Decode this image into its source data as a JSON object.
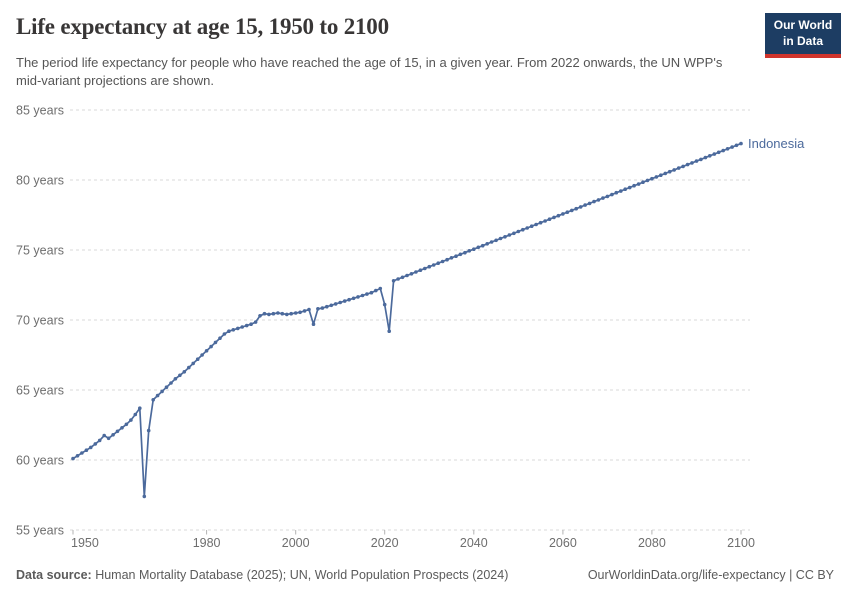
{
  "header": {
    "title": "Life expectancy at age 15, 1950 to 2100",
    "subtitle": "The period life expectancy for people who have reached the age of 15, in a given year. From 2022 onwards, the UN WPP's mid-variant projections are shown."
  },
  "logo": {
    "line1": "Our World",
    "line2": "in Data",
    "bg_color": "#1d3d63",
    "stripe_color": "#d0342c"
  },
  "footer": {
    "source_label": "Data source:",
    "source_text": " Human Mortality Database (2025); UN, World Population Prospects (2024)",
    "link": "OurWorldinData.org/life-expectancy | CC BY"
  },
  "chart_data": {
    "type": "line",
    "title": "Life expectancy at age 15, 1950 to 2100",
    "xlabel": "",
    "ylabel": "",
    "xlim": [
      1950,
      2100
    ],
    "ylim": [
      55,
      85
    ],
    "grid": "dashed-horizontal",
    "grid_color": "#dadada",
    "tick_color": "#b3b3b3",
    "line_color": "#4c6a9c",
    "legend_position": "end-of-line-label",
    "x_ticks": [
      {
        "value": 1950,
        "label": "1950"
      },
      {
        "value": 1980,
        "label": "1980"
      },
      {
        "value": 2000,
        "label": "2000"
      },
      {
        "value": 2020,
        "label": "2020"
      },
      {
        "value": 2040,
        "label": "2040"
      },
      {
        "value": 2060,
        "label": "2060"
      },
      {
        "value": 2080,
        "label": "2080"
      },
      {
        "value": 2100,
        "label": "2100"
      }
    ],
    "y_ticks": [
      {
        "value": 55,
        "label": "55 years"
      },
      {
        "value": 60,
        "label": "60 years"
      },
      {
        "value": 65,
        "label": "65 years"
      },
      {
        "value": 70,
        "label": "70 years"
      },
      {
        "value": 75,
        "label": "75 years"
      },
      {
        "value": 80,
        "label": "80 years"
      },
      {
        "value": 85,
        "label": "85 years"
      }
    ],
    "series": [
      {
        "name": "Indonesia",
        "points": [
          [
            1950,
            60.1
          ],
          [
            1951,
            60.3
          ],
          [
            1952,
            60.5
          ],
          [
            1953,
            60.7
          ],
          [
            1954,
            60.9
          ],
          [
            1955,
            61.15
          ],
          [
            1956,
            61.4
          ],
          [
            1957,
            61.75
          ],
          [
            1958,
            61.55
          ],
          [
            1959,
            61.8
          ],
          [
            1960,
            62.05
          ],
          [
            1961,
            62.3
          ],
          [
            1962,
            62.55
          ],
          [
            1963,
            62.85
          ],
          [
            1964,
            63.25
          ],
          [
            1965,
            63.7
          ],
          [
            1966,
            57.4
          ],
          [
            1967,
            62.1
          ],
          [
            1968,
            64.3
          ],
          [
            1969,
            64.6
          ],
          [
            1970,
            64.9
          ],
          [
            1971,
            65.2
          ],
          [
            1972,
            65.5
          ],
          [
            1973,
            65.8
          ],
          [
            1974,
            66.05
          ],
          [
            1975,
            66.3
          ],
          [
            1976,
            66.6
          ],
          [
            1977,
            66.9
          ],
          [
            1978,
            67.2
          ],
          [
            1979,
            67.5
          ],
          [
            1980,
            67.8
          ],
          [
            1981,
            68.1
          ],
          [
            1982,
            68.4
          ],
          [
            1983,
            68.7
          ],
          [
            1984,
            69.0
          ],
          [
            1985,
            69.2
          ],
          [
            1986,
            69.3
          ],
          [
            1987,
            69.4
          ],
          [
            1988,
            69.5
          ],
          [
            1989,
            69.6
          ],
          [
            1990,
            69.7
          ],
          [
            1991,
            69.85
          ],
          [
            1992,
            70.3
          ],
          [
            1993,
            70.45
          ],
          [
            1994,
            70.4
          ],
          [
            1995,
            70.45
          ],
          [
            1996,
            70.5
          ],
          [
            1997,
            70.45
          ],
          [
            1998,
            70.4
          ],
          [
            1999,
            70.45
          ],
          [
            2000,
            70.5
          ],
          [
            2001,
            70.55
          ],
          [
            2002,
            70.65
          ],
          [
            2003,
            70.75
          ],
          [
            2004,
            69.7
          ],
          [
            2005,
            70.8
          ],
          [
            2006,
            70.85
          ],
          [
            2007,
            70.95
          ],
          [
            2008,
            71.05
          ],
          [
            2009,
            71.15
          ],
          [
            2010,
            71.25
          ],
          [
            2011,
            71.35
          ],
          [
            2012,
            71.45
          ],
          [
            2013,
            71.55
          ],
          [
            2014,
            71.65
          ],
          [
            2015,
            71.75
          ],
          [
            2016,
            71.85
          ],
          [
            2017,
            71.95
          ],
          [
            2018,
            72.1
          ],
          [
            2019,
            72.25
          ],
          [
            2020,
            71.1
          ],
          [
            2021,
            69.2
          ],
          [
            2022,
            72.8
          ],
          [
            2023,
            72.93
          ],
          [
            2024,
            73.05
          ],
          [
            2025,
            73.18
          ],
          [
            2026,
            73.3
          ],
          [
            2027,
            73.43
          ],
          [
            2028,
            73.56
          ],
          [
            2029,
            73.68
          ],
          [
            2030,
            73.81
          ],
          [
            2031,
            73.93
          ],
          [
            2032,
            74.06
          ],
          [
            2033,
            74.18
          ],
          [
            2034,
            74.31
          ],
          [
            2035,
            74.44
          ],
          [
            2036,
            74.56
          ],
          [
            2037,
            74.69
          ],
          [
            2038,
            74.81
          ],
          [
            2039,
            74.94
          ],
          [
            2040,
            75.06
          ],
          [
            2041,
            75.19
          ],
          [
            2042,
            75.31
          ],
          [
            2043,
            75.44
          ],
          [
            2044,
            75.57
          ],
          [
            2045,
            75.69
          ],
          [
            2046,
            75.82
          ],
          [
            2047,
            75.94
          ],
          [
            2048,
            76.07
          ],
          [
            2049,
            76.19
          ],
          [
            2050,
            76.32
          ],
          [
            2051,
            76.45
          ],
          [
            2052,
            76.57
          ],
          [
            2053,
            76.7
          ],
          [
            2054,
            76.82
          ],
          [
            2055,
            76.95
          ],
          [
            2056,
            77.07
          ],
          [
            2057,
            77.2
          ],
          [
            2058,
            77.33
          ],
          [
            2059,
            77.45
          ],
          [
            2060,
            77.58
          ],
          [
            2061,
            77.7
          ],
          [
            2062,
            77.83
          ],
          [
            2063,
            77.95
          ],
          [
            2064,
            78.08
          ],
          [
            2065,
            78.21
          ],
          [
            2066,
            78.33
          ],
          [
            2067,
            78.46
          ],
          [
            2068,
            78.58
          ],
          [
            2069,
            78.71
          ],
          [
            2070,
            78.83
          ],
          [
            2071,
            78.96
          ],
          [
            2072,
            79.09
          ],
          [
            2073,
            79.21
          ],
          [
            2074,
            79.34
          ],
          [
            2075,
            79.46
          ],
          [
            2076,
            79.59
          ],
          [
            2077,
            79.71
          ],
          [
            2078,
            79.84
          ],
          [
            2079,
            79.97
          ],
          [
            2080,
            80.09
          ],
          [
            2081,
            80.22
          ],
          [
            2082,
            80.34
          ],
          [
            2083,
            80.47
          ],
          [
            2084,
            80.59
          ],
          [
            2085,
            80.72
          ],
          [
            2086,
            80.85
          ],
          [
            2087,
            80.97
          ],
          [
            2088,
            81.1
          ],
          [
            2089,
            81.22
          ],
          [
            2090,
            81.35
          ],
          [
            2091,
            81.47
          ],
          [
            2092,
            81.6
          ],
          [
            2093,
            81.73
          ],
          [
            2094,
            81.85
          ],
          [
            2095,
            81.98
          ],
          [
            2096,
            82.1
          ],
          [
            2097,
            82.23
          ],
          [
            2098,
            82.35
          ],
          [
            2099,
            82.48
          ],
          [
            2100,
            82.6
          ]
        ]
      }
    ]
  }
}
